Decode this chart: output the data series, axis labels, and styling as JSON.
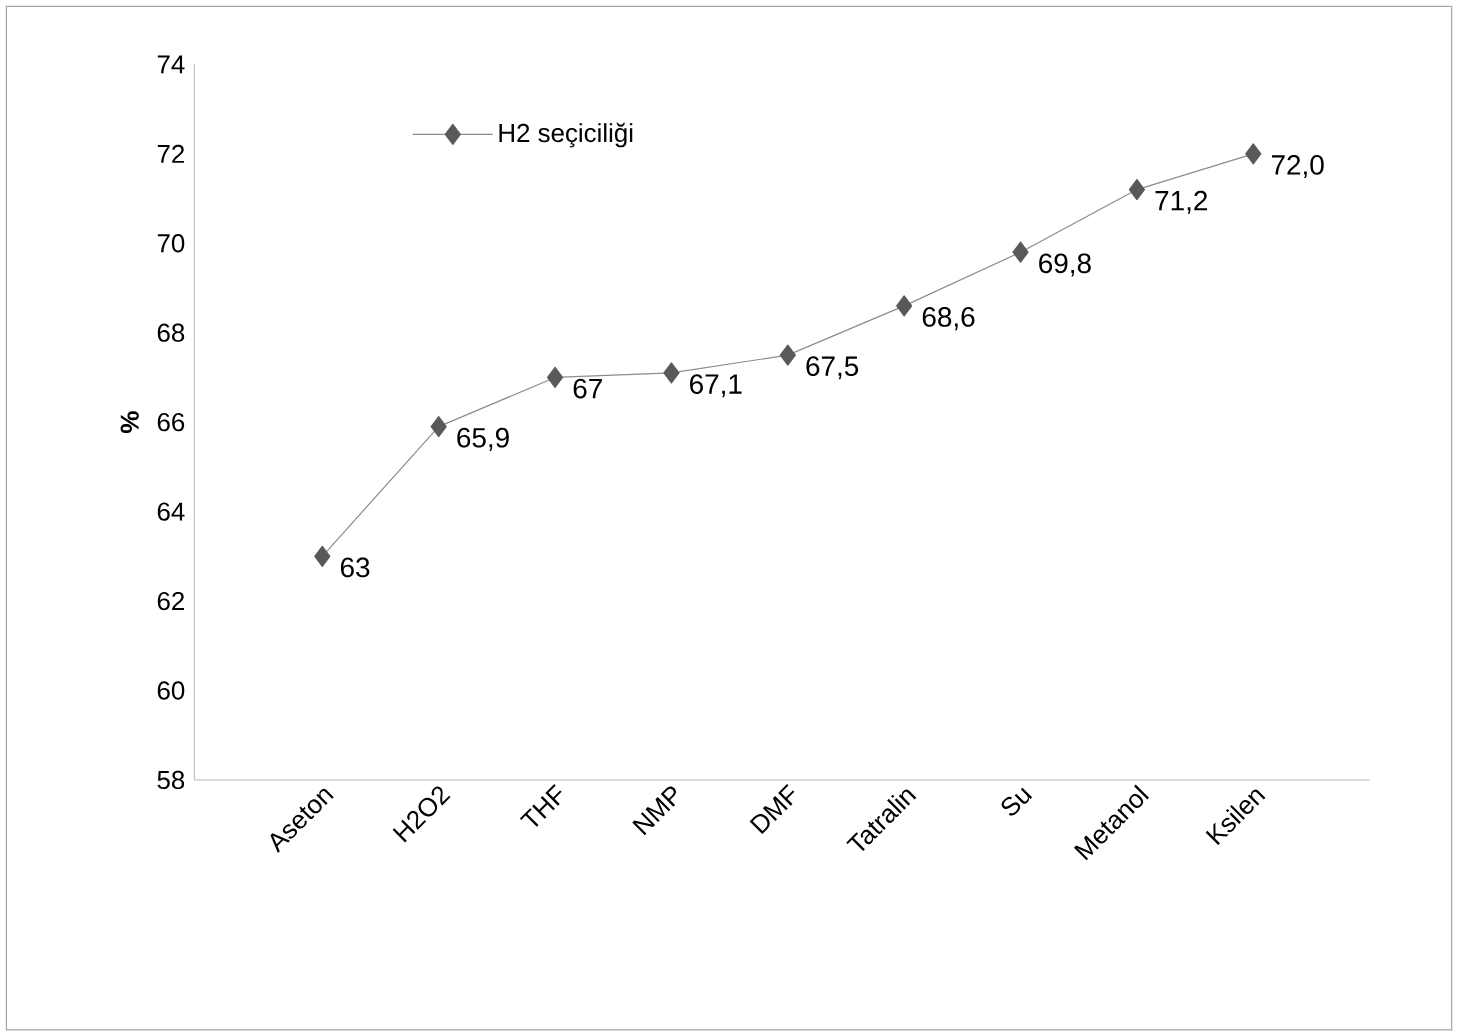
{
  "chart_data": {
    "type": "line",
    "ylabel": "%",
    "categories": [
      "Aseton",
      "H2O2",
      "THF",
      "NMP",
      "DMF",
      "Tatralin",
      "Su",
      "Metanol",
      "Ksilen"
    ],
    "series": [
      {
        "name": "H2 seçiciliği",
        "color": "#595959",
        "values": [
          63,
          65.9,
          67,
          67.1,
          67.5,
          68.6,
          69.8,
          71.2,
          72.0
        ],
        "value_labels": [
          "63",
          "65,9",
          "67",
          "67,1",
          "67,5",
          "68,6",
          "69,8",
          "71,2",
          "72,0"
        ]
      }
    ],
    "ylim": [
      58,
      74
    ],
    "yticks": [
      58,
      60,
      62,
      64,
      66,
      68,
      70,
      72,
      74
    ],
    "marker": "diamond",
    "line_style": "solid",
    "legend": "top left",
    "grid": false
  }
}
